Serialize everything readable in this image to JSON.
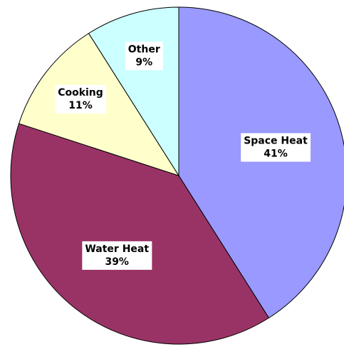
{
  "chart_data": {
    "type": "pie",
    "categories": [
      "Space Heat",
      "Water Heat",
      "Cooking",
      "Other"
    ],
    "values": [
      41,
      39,
      11,
      9
    ],
    "value_labels": [
      "41%",
      "39%",
      "11%",
      "9%"
    ],
    "colors": [
      "#9999ff",
      "#993366",
      "#ffffcc",
      "#ccffff"
    ]
  }
}
